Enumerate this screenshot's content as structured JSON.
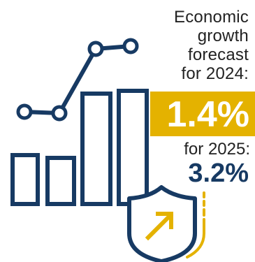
{
  "heading": {
    "line1": "Economic",
    "line2": "growth",
    "line3": "forecast",
    "line4": "for 2024:"
  },
  "forecast_2024": {
    "value": "1.4%"
  },
  "forecast_2025": {
    "label": "for 2025:",
    "value": "3.2%"
  },
  "colors": {
    "navy": "#173a63",
    "gold": "#e4b200",
    "text": "#222222",
    "background": "#ffffff"
  },
  "icons": {
    "growth": "bar-chart-with-trend-line-icon",
    "shield": "shield-with-arrow-icon"
  }
}
